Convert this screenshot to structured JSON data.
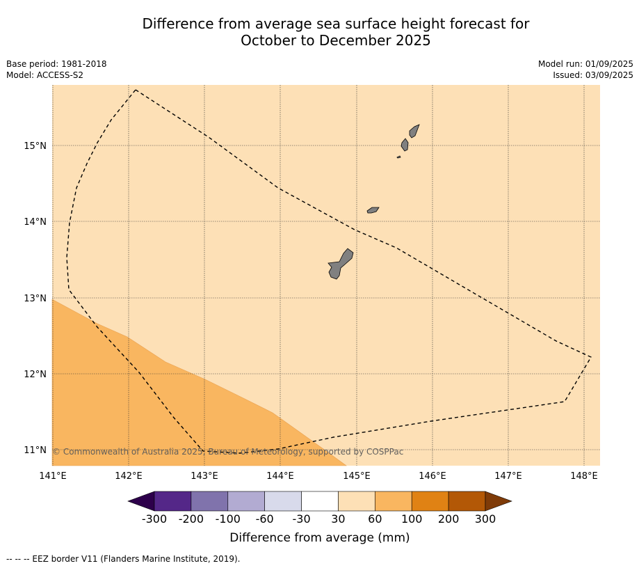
{
  "title_line1": "Difference from average sea surface height forecast for",
  "title_line2": "October to December 2025",
  "base_period": "Base period: 1981-2018",
  "model": "Model: ACCESS-S2",
  "model_run": "Model run: 01/09/2025",
  "issued": "Issued: 03/09/2025",
  "copyright": "© Commonwealth of Australia 2025, Bureau of Meteorology, supported by COSPPac",
  "lon_labels": [
    "141°E",
    "142°E",
    "143°E",
    "144°E",
    "145°E",
    "146°E",
    "147°E",
    "148°E"
  ],
  "lat_labels": [
    "15°N",
    "14°N",
    "13°N",
    "12°N",
    "11°N"
  ],
  "colorbar": {
    "tick_labels": [
      "-300",
      "-200",
      "-100",
      "-60",
      "-30",
      "30",
      "60",
      "100",
      "200",
      "300"
    ],
    "colors": [
      "#2d004b",
      "#542788",
      "#8073ac",
      "#b2abd2",
      "#d8daeb",
      "#ffffff",
      "#fde0b6",
      "#f9b660",
      "#e08214",
      "#b35806",
      "#7f3b08"
    ],
    "label": "Difference from average (mm)"
  },
  "legend_note": "--  --  -- EEZ border V11 (Flanders Marine Institute, 2019).",
  "map_colors": {
    "ocean_30_60": "#fde0b6",
    "ocean_60_100": "#f9b660",
    "land": "#808080",
    "border": "#000000"
  }
}
